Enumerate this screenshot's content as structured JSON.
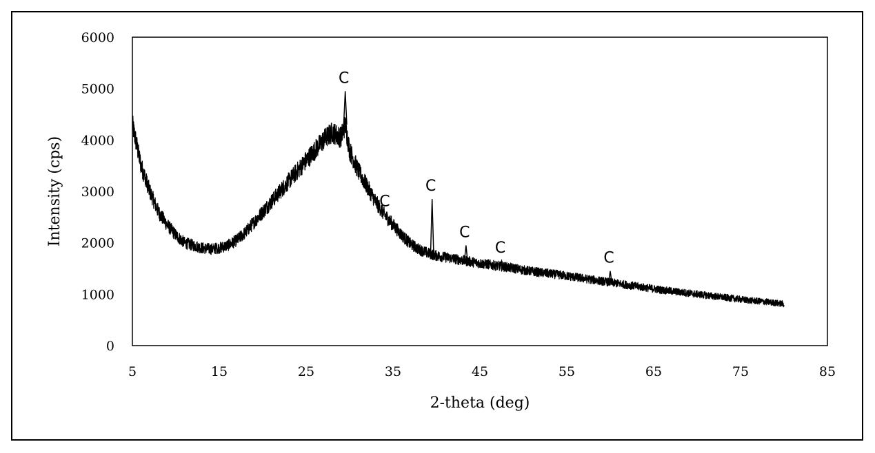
{
  "chart_data": {
    "type": "line",
    "title": "",
    "xlabel": "2-theta (deg)",
    "ylabel": "Intensity (cps)",
    "xlim": [
      5,
      85
    ],
    "ylim": [
      0,
      6000
    ],
    "x_ticks": [
      5,
      15,
      25,
      35,
      45,
      55,
      65,
      75,
      85
    ],
    "y_ticks": [
      0,
      1000,
      2000,
      3000,
      4000,
      5000,
      6000
    ],
    "grid": false,
    "legend": "none",
    "line_color": "#000000",
    "series": [
      {
        "x": [
          5,
          5.5,
          6,
          7,
          8,
          9,
          10,
          11,
          12,
          13,
          14,
          15,
          16,
          17,
          18,
          19,
          20,
          21,
          22,
          23,
          24,
          25,
          26,
          27,
          28,
          28.5,
          29,
          29.5,
          30,
          30.5,
          31,
          32,
          33,
          34,
          35,
          36,
          37,
          38,
          39,
          40,
          41,
          42,
          43,
          44,
          45,
          46,
          47,
          48,
          49,
          50,
          52,
          54,
          56,
          58,
          60,
          62,
          64,
          66,
          68,
          70,
          72,
          74,
          76,
          78,
          80
        ],
        "y": [
          4300,
          3900,
          3500,
          3000,
          2600,
          2350,
          2150,
          2000,
          1950,
          1900,
          1880,
          1900,
          1950,
          2050,
          2200,
          2400,
          2600,
          2800,
          3000,
          3200,
          3400,
          3600,
          3800,
          4000,
          4150,
          4100,
          4050,
          4300,
          3800,
          3600,
          3400,
          3100,
          2800,
          2550,
          2350,
          2150,
          1980,
          1870,
          1800,
          1750,
          1720,
          1690,
          1660,
          1630,
          1600,
          1580,
          1550,
          1530,
          1500,
          1470,
          1420,
          1380,
          1330,
          1280,
          1230,
          1180,
          1130,
          1080,
          1040,
          1000,
          960,
          920,
          880,
          850,
          810
        ]
      }
    ],
    "peaks": [
      {
        "label": "C",
        "x": 29.5,
        "y": 4950
      },
      {
        "label": "C",
        "x": 34.2,
        "y": 2550
      },
      {
        "label": "C",
        "x": 39.5,
        "y": 2850
      },
      {
        "label": "C",
        "x": 43.4,
        "y": 1950
      },
      {
        "label": "C",
        "x": 47.5,
        "y": 1650
      },
      {
        "label": "C",
        "x": 60.0,
        "y": 1450
      }
    ]
  }
}
